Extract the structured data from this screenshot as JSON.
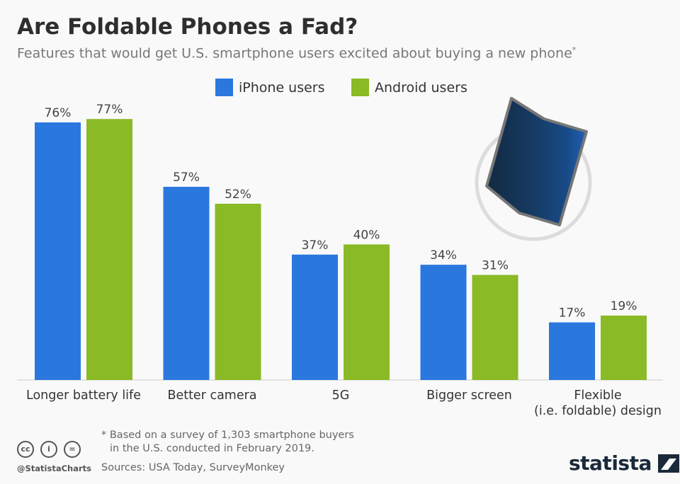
{
  "title": "Are Foldable Phones a Fad?",
  "subtitle": "Features that would get U.S. smartphone users excited about buying a new phone",
  "subtitle_mark": "*",
  "chart_data": {
    "type": "bar",
    "categories": [
      "Longer battery life",
      "Better camera",
      "5G",
      "Bigger screen",
      "Flexible (i.e. foldable) design"
    ],
    "category_lines": [
      [
        "Longer battery life"
      ],
      [
        "Better camera"
      ],
      [
        "5G"
      ],
      [
        "Bigger screen"
      ],
      [
        "Flexible",
        "(i.e. foldable) design"
      ]
    ],
    "series": [
      {
        "name": "iPhone users",
        "color": "#2a78de",
        "values": [
          76,
          57,
          37,
          34,
          17
        ]
      },
      {
        "name": "Android users",
        "color": "#8aba25",
        "values": [
          77,
          52,
          40,
          31,
          19
        ]
      }
    ],
    "unit": "%",
    "ylim": [
      0,
      80
    ],
    "grid": false,
    "legend_position": "top"
  },
  "footer": {
    "note_line1": "* Based on a survey of 1,303 smartphone buyers",
    "note_line2": "in the U.S. conducted in February 2019.",
    "sources": "Sources: USA Today, SurveyMonkey",
    "handle": "@StatistaCharts",
    "cc_icons": [
      "cc",
      "i",
      "="
    ],
    "logo": "statista"
  }
}
